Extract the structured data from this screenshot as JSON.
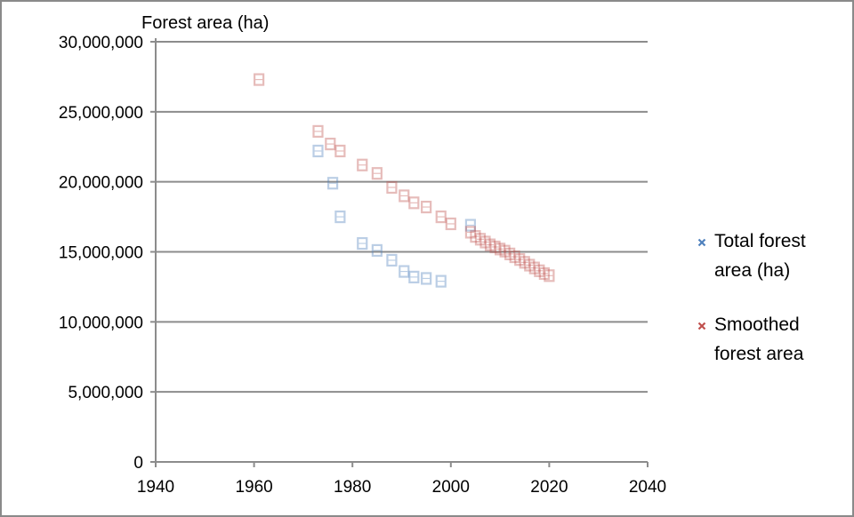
{
  "chart_data": {
    "type": "scatter",
    "title": "",
    "ylabel": "Forest area (ha)",
    "xlabel": "",
    "xlim": [
      1940,
      2040
    ],
    "ylim": [
      0,
      30000000
    ],
    "x_ticks": [
      1940,
      1960,
      1980,
      2000,
      2020,
      2040
    ],
    "y_ticks": [
      0,
      5000000,
      10000000,
      15000000,
      20000000,
      25000000,
      30000000
    ],
    "y_tick_labels": [
      "0",
      "5,000,000",
      "10,000,000",
      "15,000,000",
      "20,000,000",
      "25,000,000",
      "30,000,000"
    ],
    "grid": "horizontal",
    "legend_position": "right",
    "series": [
      {
        "name": "Total forest area (ha)",
        "legend_lines": [
          "Total forest",
          "area (ha)"
        ],
        "color": "#4f81bd",
        "points": [
          [
            1973,
            22200000
          ],
          [
            1976,
            19900000
          ],
          [
            1977.5,
            17500000
          ],
          [
            1982,
            15600000
          ],
          [
            1985,
            15100000
          ],
          [
            1988,
            14400000
          ],
          [
            1990.5,
            13600000
          ],
          [
            1992.5,
            13200000
          ],
          [
            1995,
            13100000
          ],
          [
            1998,
            12900000
          ],
          [
            2004,
            16900000
          ]
        ]
      },
      {
        "name": "Smoothed forest area",
        "legend_lines": [
          "Smoothed",
          "forest area"
        ],
        "color": "#c0504d",
        "points": [
          [
            1961,
            27300000
          ],
          [
            1973,
            23600000
          ],
          [
            1975.5,
            22700000
          ],
          [
            1977.5,
            22200000
          ],
          [
            1982,
            21200000
          ],
          [
            1985,
            20600000
          ],
          [
            1988,
            19600000
          ],
          [
            1990.5,
            19000000
          ],
          [
            1992.5,
            18500000
          ],
          [
            1995,
            18200000
          ],
          [
            1998,
            17500000
          ],
          [
            2000,
            17000000
          ],
          [
            2004,
            16400000
          ],
          [
            2005,
            16100000
          ],
          [
            2006,
            15900000
          ],
          [
            2007,
            15700000
          ],
          [
            2008,
            15500000
          ],
          [
            2009,
            15350000
          ],
          [
            2010,
            15200000
          ],
          [
            2011,
            15050000
          ],
          [
            2012,
            14850000
          ],
          [
            2013,
            14650000
          ],
          [
            2014,
            14450000
          ],
          [
            2015,
            14250000
          ],
          [
            2016,
            14050000
          ],
          [
            2017,
            13850000
          ],
          [
            2018,
            13650000
          ],
          [
            2019,
            13450000
          ],
          [
            2020,
            13300000
          ]
        ]
      }
    ]
  }
}
